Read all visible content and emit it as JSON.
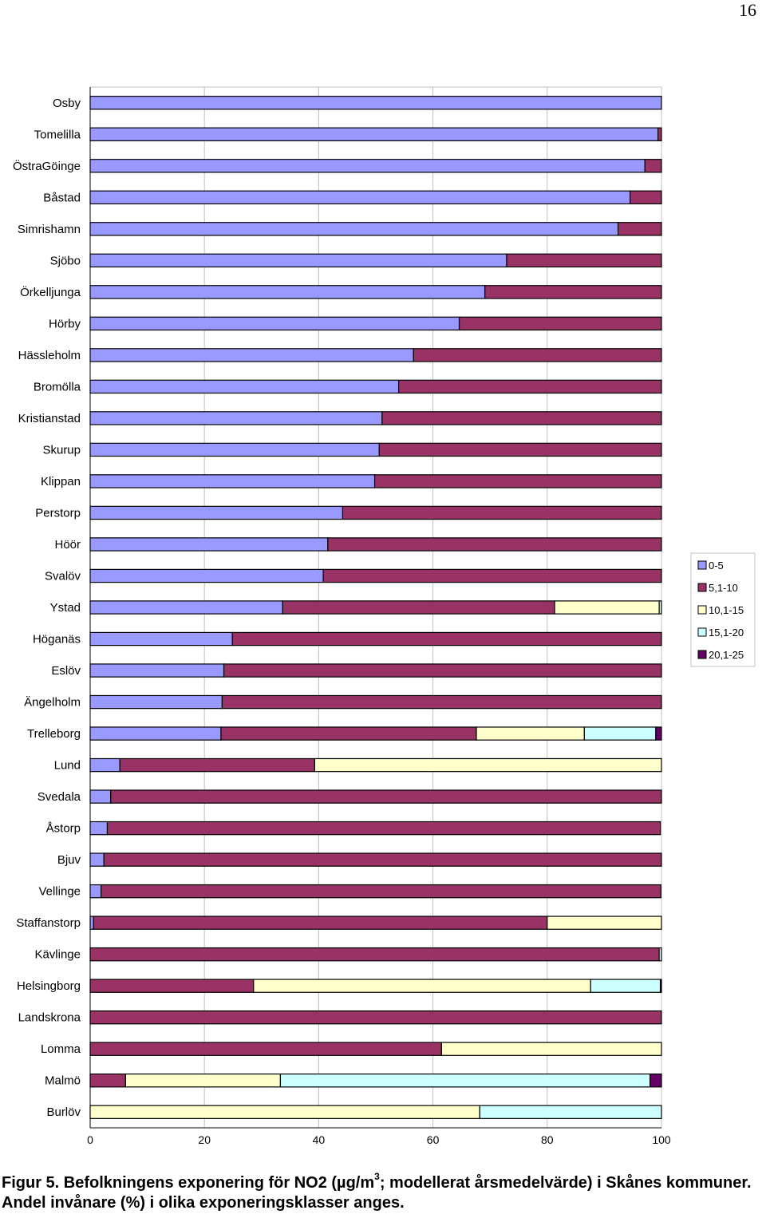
{
  "page": {
    "number": "16"
  },
  "caption": {
    "part1": "Figur 5. Befolkningens exponering för NO2 (µg/m",
    "sup": "3",
    "part2": "; modellerat årsmedelvärde) i Skånes kommuner.  Andel invånare (%) i olika exponeringsklasser anges."
  },
  "chart_data": {
    "type": "bar",
    "orientation": "horizontal",
    "stacked": true,
    "xlim": [
      0,
      100
    ],
    "xticks": [
      0,
      20,
      40,
      60,
      80,
      100
    ],
    "grid": true,
    "legend_position": "right",
    "categories": [
      "Osby",
      "Tomelilla",
      "ÖstraGöinge",
      "Båstad",
      "Simrishamn",
      "Sjöbo",
      "Örkelljunga",
      "Hörby",
      "Hässleholm",
      "Bromölla",
      "Kristianstad",
      "Skurup",
      "Klippan",
      "Perstorp",
      "Höör",
      "Svalöv",
      "Ystad",
      "Höganäs",
      "Eslöv",
      "Ängelholm",
      "Trelleborg",
      "Lund",
      "Svedala",
      "Åstorp",
      "Bjuv",
      "Vellinge",
      "Staffanstorp",
      "Kävlinge",
      "Helsingborg",
      "Landskrona",
      "Lomma",
      "Malmö",
      "Burlöv"
    ],
    "series": [
      {
        "name": "0-5",
        "color": "#9999ff",
        "values": [
          100,
          99.4,
          97.1,
          94.5,
          92.4,
          72.9,
          69.1,
          64.6,
          56.6,
          54.0,
          51.1,
          50.6,
          49.8,
          44.2,
          41.6,
          40.8,
          33.7,
          24.9,
          23.4,
          23.1,
          22.9,
          5.2,
          3.6,
          3.0,
          2.4,
          1.9,
          0.6,
          0,
          0,
          0,
          0,
          0,
          0
        ]
      },
      {
        "name": "5,1-10",
        "color": "#993366",
        "values": [
          0,
          0.6,
          2.9,
          5.5,
          7.6,
          27.1,
          30.9,
          35.4,
          43.4,
          46.0,
          48.9,
          49.4,
          50.2,
          55.8,
          58.4,
          59.2,
          47.6,
          75.1,
          76.6,
          76.9,
          44.7,
          34.1,
          96.4,
          96.8,
          97.6,
          98.0,
          79.4,
          99.6,
          28.6,
          100,
          61.5,
          6.2,
          0
        ]
      },
      {
        "name": "10,1-15",
        "color": "#ffffcc",
        "values": [
          0,
          0,
          0,
          0,
          0,
          0,
          0,
          0,
          0,
          0,
          0,
          0,
          0,
          0,
          0,
          0,
          18.3,
          0,
          0,
          0,
          18.9,
          60.7,
          0,
          0,
          0,
          0,
          20.0,
          0,
          59.0,
          0,
          38.5,
          27.1,
          68.2
        ]
      },
      {
        "name": "15,1-20",
        "color": "#ccffff",
        "values": [
          0,
          0,
          0,
          0,
          0,
          0,
          0,
          0,
          0,
          0,
          0,
          0,
          0,
          0,
          0,
          0,
          0.4,
          0,
          0,
          0,
          12.5,
          0,
          0,
          0,
          0,
          0,
          0,
          0.4,
          12.2,
          0,
          0,
          64.7,
          31.8
        ]
      },
      {
        "name": "20,1-25",
        "color": "#660066",
        "values": [
          0,
          0,
          0,
          0,
          0,
          0,
          0,
          0,
          0,
          0,
          0,
          0,
          0,
          0,
          0,
          0,
          0,
          0,
          0,
          0,
          1.0,
          0,
          0,
          0,
          0,
          0,
          0,
          0,
          0.2,
          0,
          0,
          2.0,
          0
        ]
      }
    ]
  }
}
